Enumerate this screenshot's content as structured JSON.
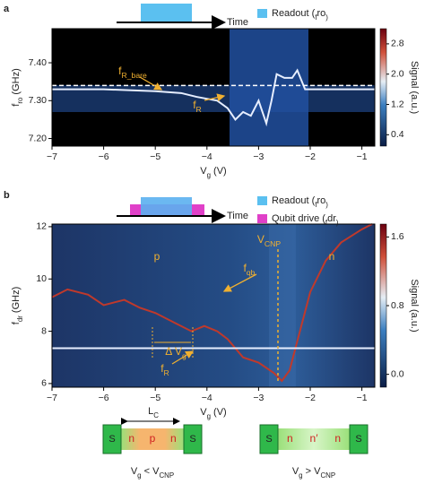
{
  "chart_data": [
    {
      "type": "line",
      "panel_label": "a",
      "legend_items": [
        [
          "Readout (",
          "f",
          "ro",
          ")"
        ]
      ],
      "time_label": "Time",
      "xlabel": [
        "V",
        "g",
        " (V)"
      ],
      "ylabel": [
        "f",
        "ro",
        " (GHz)"
      ],
      "colorbar_label": "Signal (a.u.)",
      "xlim": [
        -7,
        -0.75
      ],
      "xticks": [
        {
          "value": -7,
          "label": "−7"
        },
        {
          "value": -6,
          "label": "−6"
        },
        {
          "value": -5,
          "label": "−5"
        },
        {
          "value": -4,
          "label": "−4"
        },
        {
          "value": -3,
          "label": "−3"
        },
        {
          "value": -2,
          "label": "−2"
        },
        {
          "value": -1,
          "label": "−1"
        }
      ],
      "ylim": [
        7.18,
        7.49
      ],
      "yticks": [
        {
          "value": 7.2,
          "label": "7.20"
        },
        {
          "value": 7.3,
          "label": "7.30"
        },
        {
          "value": 7.4,
          "label": "7.40"
        }
      ],
      "clim": [
        0.1,
        3.2
      ],
      "cticks": [
        0.4,
        1.2,
        {
          "value": 2,
          "label": "2.0"
        },
        2.8
      ],
      "series": [
        {
          "color": "#e6eeff",
          "dash": false,
          "x": [
            -7,
            -6,
            -5,
            -4.5,
            -4.2,
            -4,
            -3.8,
            -3.6,
            -3.45,
            -3.3,
            -3.15,
            -3.0,
            -2.85,
            -2.75,
            -2.65,
            -2.5,
            -2.35,
            -2.25,
            -2.1,
            -2,
            -1.5,
            -0.75
          ],
          "values": [
            7.33,
            7.33,
            7.325,
            7.32,
            7.31,
            7.305,
            7.3,
            7.28,
            7.25,
            7.27,
            7.26,
            7.3,
            7.24,
            7.3,
            7.37,
            7.36,
            7.36,
            7.38,
            7.33,
            7.33,
            7.33,
            7.33
          ]
        },
        {
          "color": "#ffffff",
          "dash": true,
          "x": [
            -7,
            -0.75
          ],
          "values": [
            7.34,
            7.34
          ]
        }
      ],
      "annotations": [
        [
          "f",
          "R_bare"
        ],
        [
          "f",
          "R"
        ]
      ]
    },
    {
      "type": "line",
      "panel_label": "b",
      "legend_items": [
        [
          "Readout (",
          "f",
          "ro",
          ")"
        ],
        [
          "Qubit drive (",
          "f",
          "dr",
          ")"
        ]
      ],
      "time_label": "Time",
      "xlabel": [
        "V",
        "g",
        " (V)"
      ],
      "ylabel": [
        "f",
        "dr",
        " (GHz)"
      ],
      "colorbar_label": "Signal (a.u.)",
      "xlim": [
        -7,
        -0.75
      ],
      "xticks": [
        {
          "value": -7,
          "label": "−7"
        },
        {
          "value": -6,
          "label": "−6"
        },
        {
          "value": -5,
          "label": "−5"
        },
        {
          "value": -4,
          "label": "−4"
        },
        {
          "value": -3,
          "label": "−3"
        },
        {
          "value": -2,
          "label": "−2"
        },
        {
          "value": -1,
          "label": "−1"
        }
      ],
      "ylim": [
        5.86,
        12.1
      ],
      "yticks": [
        6,
        8,
        10,
        12
      ],
      "clim": [
        -0.15,
        1.75
      ],
      "cticks": [
        {
          "value": 0,
          "label": "0.0"
        },
        0.8,
        1.6
      ],
      "series": [
        {
          "color": "#c0392b",
          "dash": false,
          "x": [
            -7,
            -6.7,
            -6.3,
            -6,
            -5.6,
            -5.3,
            -5,
            -4.6,
            -4.3,
            -4.05,
            -3.8,
            -3.6,
            -3.3,
            -3,
            -2.7,
            -2.55,
            -2.4,
            -2.2,
            -2,
            -1.7,
            -1.4,
            -1,
            -0.8
          ],
          "values": [
            9.3,
            9.6,
            9.4,
            9.0,
            9.2,
            8.9,
            8.7,
            8.3,
            8.0,
            8.2,
            8.0,
            7.7,
            7.0,
            6.8,
            6.4,
            6.1,
            6.5,
            8.0,
            9.5,
            10.7,
            11.4,
            11.9,
            12.1
          ]
        },
        {
          "color": "#e6eeff",
          "dash": false,
          "x": [
            -7,
            -0.75
          ],
          "values": [
            7.35,
            7.35
          ]
        }
      ],
      "annotations": [
        [
          "p"
        ],
        [
          "n"
        ],
        [
          "V",
          "CNP"
        ],
        [
          "f",
          "qb"
        ],
        [
          "f",
          "R"
        ],
        [
          "Δ V",
          "g"
        ]
      ]
    }
  ],
  "diagrams": {
    "lc_label": [
      "L",
      "C"
    ],
    "devices": [
      {
        "contacts": [
          "S",
          "S"
        ],
        "regions": [
          "n",
          "p",
          "n"
        ],
        "condition": [
          "V",
          "g",
          " < V",
          "CNP"
        ]
      },
      {
        "contacts": [
          "S",
          "S"
        ],
        "regions": [
          "n",
          "n′",
          "n"
        ],
        "condition": [
          "V",
          "g",
          " > V",
          "CNP"
        ]
      }
    ]
  }
}
